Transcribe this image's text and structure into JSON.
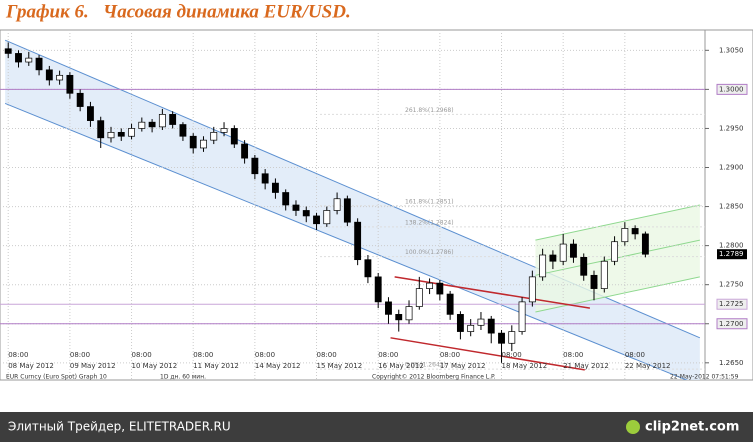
{
  "chart_data": {
    "type": "candlestick",
    "title": "График 6.   Часовая динамика EUR/USD.",
    "xlim": [
      -0.8,
      67.8
    ],
    "ylim": [
      1.2628,
      1.3076
    ],
    "yticks": [
      {
        "value": 1.305,
        "label": "1.3050"
      },
      {
        "value": 1.3,
        "label": "1.3000"
      },
      {
        "value": 1.295,
        "label": "1.2950"
      },
      {
        "value": 1.29,
        "label": "1.2900"
      },
      {
        "value": 1.285,
        "label": "1.2850"
      },
      {
        "value": 1.28,
        "label": "1.2800"
      },
      {
        "value": 1.275,
        "label": "1.2750"
      },
      {
        "value": 1.27,
        "label": "1.2700"
      },
      {
        "value": 1.265,
        "label": "1.2650"
      }
    ],
    "xticks": [
      {
        "value": 0,
        "label": "08:00"
      },
      {
        "value": 6,
        "label": "08:00"
      },
      {
        "value": 12,
        "label": "08:00"
      },
      {
        "value": 18,
        "label": "08:00"
      },
      {
        "value": 24,
        "label": "08:00"
      },
      {
        "value": 30,
        "label": "08:00"
      },
      {
        "value": 36,
        "label": "08:00"
      },
      {
        "value": 42,
        "label": "08:00"
      },
      {
        "value": 48,
        "label": "08:00"
      },
      {
        "value": 54,
        "label": "08:00"
      },
      {
        "value": 60,
        "label": "08:00"
      }
    ],
    "xtick_dates": [
      "08 May 2012",
      "09 May 2012",
      "10 May 2012",
      "11 May 2012",
      "14 May 2012",
      "15 May 2012",
      "16 May 2012",
      "17 May 2012",
      "18 May 2012",
      "21 May 2012",
      "22 May 2012"
    ],
    "open": [
      1.3052,
      1.3046,
      1.3035,
      1.304,
      1.3025,
      1.3012,
      1.3018,
      1.2995,
      1.2978,
      1.296,
      1.2938,
      1.2945,
      1.294,
      1.295,
      1.2958,
      1.2952,
      1.2968,
      1.2955,
      1.294,
      1.2925,
      1.2935,
      1.2945,
      1.295,
      1.293,
      1.2912,
      1.2892,
      1.288,
      1.2868,
      1.2852,
      1.2845,
      1.2838,
      1.2828,
      1.2845,
      1.286,
      1.283,
      1.2782,
      1.276,
      1.2728,
      1.2712,
      1.2705,
      1.2722,
      1.2745,
      1.2752,
      1.2738,
      1.2712,
      1.269,
      1.2698,
      1.2706,
      1.2688,
      1.2675,
      1.269,
      1.2728,
      1.276,
      1.2788,
      1.278,
      1.2802,
      1.2785,
      1.2762,
      1.2745,
      1.278,
      1.2805,
      1.2822,
      1.2815
    ],
    "high": [
      1.306,
      1.305,
      1.3048,
      1.3044,
      1.303,
      1.3024,
      1.3022,
      1.3,
      1.2984,
      1.2965,
      1.2952,
      1.295,
      1.2956,
      1.2964,
      1.2962,
      1.2975,
      1.2972,
      1.2958,
      1.2944,
      1.294,
      1.2952,
      1.2958,
      1.2954,
      1.2935,
      1.2916,
      1.2898,
      1.2886,
      1.2872,
      1.2858,
      1.285,
      1.2842,
      1.285,
      1.2868,
      1.2864,
      1.2835,
      1.2788,
      1.2765,
      1.2734,
      1.2718,
      1.273,
      1.276,
      1.2758,
      1.2756,
      1.2742,
      1.2716,
      1.2706,
      1.2715,
      1.271,
      1.2692,
      1.2698,
      1.2734,
      1.2768,
      1.2796,
      1.2794,
      1.2815,
      1.2808,
      1.279,
      1.2768,
      1.2786,
      1.2812,
      1.283,
      1.2826,
      1.2818
    ],
    "low": [
      1.304,
      1.3028,
      1.303,
      1.3018,
      1.3005,
      1.3006,
      1.2988,
      1.2972,
      1.2952,
      1.2925,
      1.2932,
      1.2934,
      1.2936,
      1.2946,
      1.2945,
      1.2948,
      1.295,
      1.2934,
      1.2918,
      1.292,
      1.293,
      1.294,
      1.2925,
      1.2905,
      1.2885,
      1.2872,
      1.286,
      1.2845,
      1.2838,
      1.283,
      1.282,
      1.2824,
      1.284,
      1.2825,
      1.2775,
      1.2752,
      1.272,
      1.27,
      1.269,
      1.27,
      1.2718,
      1.2738,
      1.273,
      1.2705,
      1.268,
      1.2684,
      1.2692,
      1.2675,
      1.265,
      1.2665,
      1.2686,
      1.2722,
      1.2755,
      1.277,
      1.2775,
      1.2778,
      1.2755,
      1.273,
      1.274,
      1.2775,
      1.28,
      1.2808,
      1.2785
    ],
    "close": [
      1.3046,
      1.3035,
      1.304,
      1.3025,
      1.3012,
      1.3018,
      1.2995,
      1.2978,
      1.296,
      1.2938,
      1.2945,
      1.294,
      1.295,
      1.2958,
      1.2952,
      1.2968,
      1.2955,
      1.294,
      1.2925,
      1.2935,
      1.2945,
      1.295,
      1.293,
      1.2912,
      1.2892,
      1.288,
      1.2868,
      1.2852,
      1.2845,
      1.2838,
      1.2828,
      1.2845,
      1.286,
      1.283,
      1.2782,
      1.276,
      1.2728,
      1.2712,
      1.2705,
      1.2722,
      1.2745,
      1.2752,
      1.2738,
      1.2712,
      1.269,
      1.2698,
      1.2706,
      1.2688,
      1.2675,
      1.269,
      1.2728,
      1.276,
      1.2788,
      1.278,
      1.2802,
      1.2785,
      1.2762,
      1.2745,
      1.278,
      1.2805,
      1.2822,
      1.2815,
      1.2789
    ],
    "channels": [
      {
        "color": "#5b8fd0",
        "fill": "#dce8f7",
        "upper": {
          "x": [
            -0.3,
            67.3
          ],
          "y": [
            1.3063,
            1.2682
          ]
        },
        "lower": {
          "x": [
            -0.3,
            67.3
          ],
          "y": [
            1.2982,
            1.2621
          ]
        }
      },
      {
        "color": "#8fd88f",
        "fill": "#eaf7e4",
        "upper": {
          "x": [
            51.3,
            67.3
          ],
          "y": [
            1.2807,
            1.2852
          ]
        },
        "lower": {
          "x": [
            51.3,
            67.3
          ],
          "y": [
            1.2715,
            1.276
          ]
        },
        "middle": {
          "x": [
            51.3,
            67.3
          ],
          "y": [
            1.2762,
            1.2807
          ]
        }
      }
    ],
    "trendlines": [
      {
        "color": "#c0282d",
        "x": [
          37.6,
          56.6
        ],
        "y": [
          1.276,
          1.272
        ]
      },
      {
        "color": "#c0282d",
        "x": [
          37.2,
          56.1
        ],
        "y": [
          1.2682,
          1.2641
        ]
      }
    ],
    "fib_levels": [
      {
        "value": 1.2968,
        "label": "261.8%(1.2968)"
      },
      {
        "value": 1.2851,
        "label": "161.8%(1.2851)"
      },
      {
        "value": 1.2824,
        "label": "138.2%(1.2824)"
      },
      {
        "value": 1.2786,
        "label": "100.0%(1.2786)"
      },
      {
        "value": 1.2642,
        "label": "0.0%(1.2642)"
      }
    ],
    "hlines": [
      {
        "value": 1.3,
        "label": "1.3000",
        "color": "#b07cc6"
      },
      {
        "value": 1.2725,
        "label": "1.2725",
        "color": "#c9a6d8"
      },
      {
        "value": 1.27,
        "label": "1.2700",
        "color": "#b07cc6"
      }
    ],
    "last_price": {
      "value": 1.2789,
      "label": "1.2789"
    },
    "footer": [
      "EUR Curncy (Euro Spot) Graph 10",
      "1D дн. 60 мин.",
      "Copyright© 2012 Bloomberg Finance L.P.",
      "22-May-2012 07:51:59"
    ],
    "source": "Элитный Трейдер, ELITETRADER.RU",
    "watermark": "clip2net.com"
  }
}
